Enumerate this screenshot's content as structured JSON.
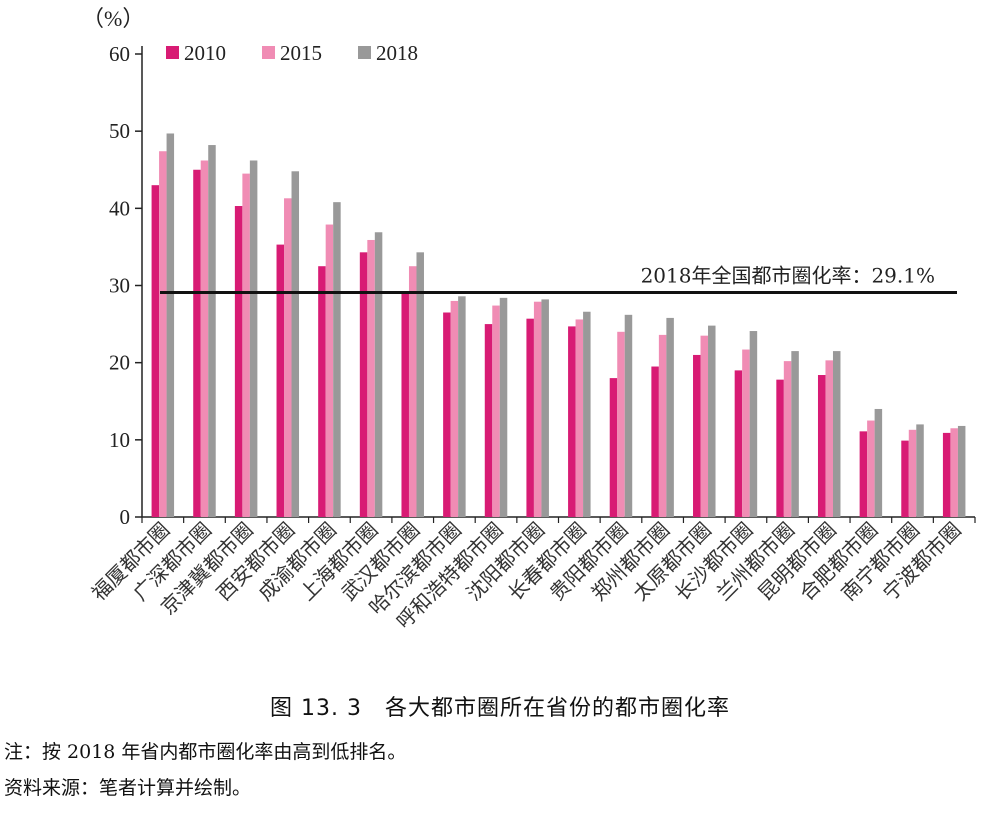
{
  "chart_data": {
    "type": "bar",
    "unit_label": "（%）",
    "categories": [
      "福厦都市圈",
      "广深都市圈",
      "京津冀都市圈",
      "西安都市圈",
      "成渝都市圈",
      "上海都市圈",
      "武汉都市圈",
      "哈尔滨都市圈",
      "呼和浩特都市圈",
      "沈阳都市圈",
      "长春都市圈",
      "贵阳都市圈",
      "郑州都市圈",
      "太原都市圈",
      "长沙都市圈",
      "兰州都市圈",
      "昆明都市圈",
      "合肥都市圈",
      "南宁都市圈",
      "宁波都市圈"
    ],
    "series": [
      {
        "name": "2010",
        "color": "#d81b74",
        "values": [
          43.0,
          45.0,
          40.3,
          35.3,
          32.5,
          34.3,
          29.0,
          26.5,
          25.0,
          25.7,
          24.7,
          18.0,
          19.5,
          21.0,
          19.0,
          17.8,
          18.4,
          11.1,
          9.9,
          10.9
        ]
      },
      {
        "name": "2015",
        "color": "#f08cb4",
        "values": [
          47.4,
          46.2,
          44.5,
          41.3,
          37.9,
          35.9,
          32.5,
          28.0,
          27.4,
          27.9,
          25.6,
          24.0,
          23.6,
          23.5,
          21.7,
          20.2,
          20.3,
          12.5,
          11.3,
          11.5
        ]
      },
      {
        "name": "2018",
        "color": "#999999",
        "values": [
          49.7,
          48.2,
          46.2,
          44.8,
          40.8,
          36.9,
          34.3,
          28.6,
          28.4,
          28.2,
          26.6,
          26.2,
          25.8,
          24.8,
          24.1,
          21.5,
          21.5,
          14.0,
          12.0,
          11.8
        ]
      }
    ],
    "ylim": [
      0,
      60
    ],
    "yticks": [
      0,
      10,
      20,
      30,
      40,
      50,
      60
    ],
    "legend": "top-left",
    "reference_line": {
      "value": 29.1,
      "label": "2018年全国都市圈化率：29.1%"
    }
  },
  "caption": "图 13. 3　各大都市圈所在省份的都市圈化率",
  "note": "注：按 2018 年省内都市圈化率由高到低排名。",
  "source": "资料来源：笔者计算并绘制。"
}
